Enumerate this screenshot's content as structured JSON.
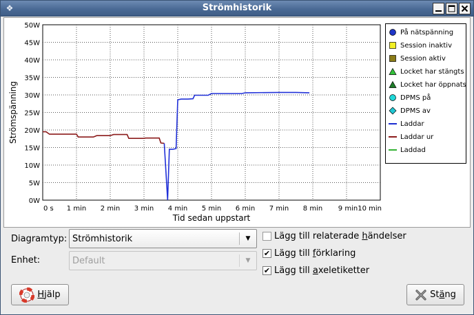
{
  "window": {
    "title": "Strömhistorik",
    "icon": "app-icon",
    "buttons": [
      "minimize-icon",
      "maximize-icon",
      "close-icon"
    ]
  },
  "chart_data": {
    "type": "line",
    "title": "",
    "xlabel": "Tid sedan uppstart",
    "ylabel": "Strömspänning",
    "xlim": [
      0,
      10
    ],
    "ylim": [
      0,
      50
    ],
    "x_ticks": [
      "0 s",
      "1 min",
      "2 min",
      "3 min",
      "4 min",
      "5 min",
      "6 min",
      "7 min",
      "8 min",
      "9 min",
      "10 min"
    ],
    "y_ticks": [
      "0W",
      "5W",
      "10W",
      "15W",
      "20W",
      "25W",
      "30W",
      "35W",
      "40W",
      "45W",
      "50W"
    ],
    "grid": true,
    "legend_position": "right",
    "series": [
      {
        "name": "Laddar ur",
        "color": "#8b1a1a",
        "x": [
          0,
          0.1,
          0.2,
          0.5,
          0.9,
          1.0,
          1.05,
          1.5,
          1.6,
          2.0,
          2.1,
          2.5,
          2.55,
          3.0,
          3.05,
          3.45,
          3.5,
          3.6
        ],
        "y": [
          19.5,
          19.5,
          18.8,
          18.8,
          18.8,
          18.8,
          18.0,
          18.0,
          18.4,
          18.4,
          18.7,
          18.7,
          17.6,
          17.6,
          17.7,
          17.7,
          16.3,
          16.2
        ]
      },
      {
        "name": "Laddar",
        "color": "#2030d8",
        "x": [
          3.6,
          3.7,
          3.75,
          3.85,
          3.95,
          4.0,
          4.1,
          4.3,
          4.45,
          4.5,
          4.9,
          5.0,
          5.9,
          6.0,
          7.0,
          7.5,
          7.9
        ],
        "y": [
          16.2,
          0,
          14.5,
          14.5,
          14.7,
          28.6,
          28.8,
          28.8,
          28.9,
          29.9,
          29.9,
          30.4,
          30.4,
          30.6,
          30.7,
          30.7,
          30.6
        ]
      }
    ],
    "legend": [
      {
        "label": "På nätspänning",
        "marker": "circle",
        "color": "#1f36c7"
      },
      {
        "label": "Session inaktiv",
        "marker": "square",
        "color": "#f2ef24"
      },
      {
        "label": "Session aktiv",
        "marker": "square",
        "color": "#8a7b18"
      },
      {
        "label": "Locket har stängts",
        "marker": "triangle",
        "color": "#33c13a"
      },
      {
        "label": "Locket har öppnats",
        "marker": "triangle",
        "color": "#1e7d2a"
      },
      {
        "label": "DPMS på",
        "marker": "circle",
        "color": "#20d8d8"
      },
      {
        "label": "DPMS av",
        "marker": "diamond",
        "color": "#20c7d3"
      },
      {
        "label": "Laddar",
        "marker": "line",
        "color": "#1a2bd0"
      },
      {
        "label": "Laddar ur",
        "marker": "line",
        "color": "#8b1a1a"
      },
      {
        "label": "Laddad",
        "marker": "line",
        "color": "#33b233"
      }
    ]
  },
  "controls": {
    "graph_type_label": "Diagramtyp:",
    "graph_type_value": "Strömhistorik",
    "unit_label": "Enhet:",
    "unit_value": "Default",
    "checkboxes": [
      {
        "label_pre": "Lägg till relaterade ",
        "label_u": "h",
        "label_post": "ändelser",
        "checked": false
      },
      {
        "label_pre": "Lägg till ",
        "label_u": "f",
        "label_post": "örklaring",
        "checked": true
      },
      {
        "label_pre": "Lägg till ",
        "label_u": "a",
        "label_post": "xeletiketter",
        "checked": true
      }
    ]
  },
  "buttons": {
    "help_u": "H",
    "help_rest": "jälp",
    "close_pre": "St",
    "close_u": "ä",
    "close_post": "ng"
  }
}
